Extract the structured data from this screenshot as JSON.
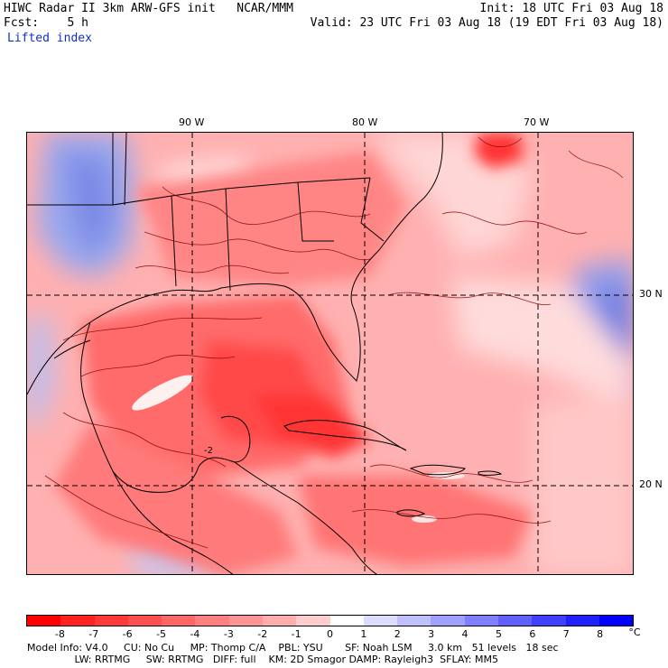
{
  "header": {
    "line1_left": "HIWC Radar II 3km ARW-GFS init   NCAR/MMM",
    "line1_right": "Init: 18 UTC Fri 03 Aug 18",
    "line2_left": "Fcst:    5 h",
    "line2_right": "Valid: 23 UTC Fri 03 Aug 18 (19 EDT Fri 03 Aug 18)",
    "field_name": "Lifted index"
  },
  "map": {
    "lon_labels": [
      "90 W",
      "80 W",
      "70 W"
    ],
    "lat_labels": [
      "30 N",
      "20 N"
    ],
    "contour_label": "-2"
  },
  "colorbar": {
    "labels": [
      "-8",
      "-7",
      "-6",
      "-5",
      "-4",
      "-3",
      "-2",
      "-1",
      "0",
      "1",
      "2",
      "3",
      "4",
      "5",
      "6",
      "7",
      "8"
    ],
    "unit": "°C",
    "colors": [
      "#ff0000",
      "#ff2020",
      "#ff3838",
      "#ff4f4f",
      "#ff6666",
      "#ff7e7e",
      "#ff9595",
      "#ffadad",
      "#ffcccc",
      "#ffffff",
      "#dcdcff",
      "#c0c0ff",
      "#a0a0ff",
      "#8080ff",
      "#6060ff",
      "#4040ff",
      "#2020ff",
      "#0000ff"
    ]
  },
  "footer": {
    "line1": "Model Info: V4.0     CU: No Cu     MP: Thomp C/A    PBL: YSU       SF: Noah LSM     3.0 km   51 levels   18 sec",
    "line2": "               LW: RRTMG     SW: RRTMG   DIFF: full    KM: 2D Smagor DAMP: Rayleigh3  SFLAY: MM5"
  }
}
